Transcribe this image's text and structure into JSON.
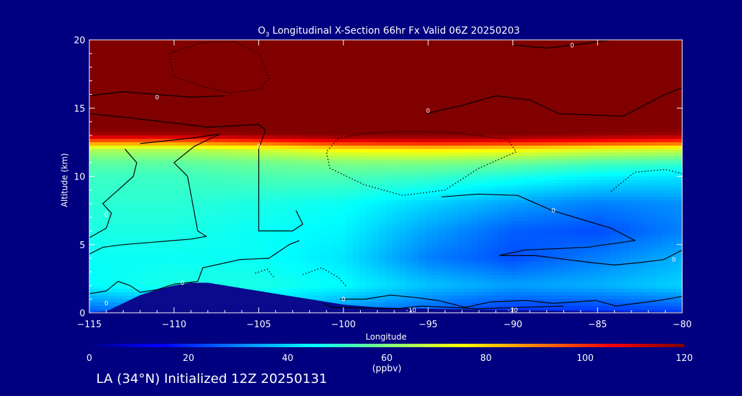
{
  "chart_data": {
    "type": "heatmap",
    "title_species": "O",
    "title_subscript": "3",
    "title_rest": " Longitudinal X-Section 66hr  Fx Valid 06Z 20250203",
    "xlabel": "Longitude",
    "ylabel": "Altitude (km)",
    "xlim": [
      -115,
      -80
    ],
    "ylim": [
      0,
      20
    ],
    "x_ticks": [
      -115,
      -110,
      -105,
      -100,
      -95,
      -90,
      -85,
      -80
    ],
    "x_tick_labels": [
      "−115",
      "−110",
      "−105",
      "−100",
      "−95",
      "−90",
      "−85",
      "−80"
    ],
    "y_ticks": [
      0,
      5,
      10,
      15,
      20
    ],
    "y_tick_labels": [
      "0",
      "5",
      "10",
      "15",
      "20"
    ],
    "colorbar": {
      "range": [
        0,
        120
      ],
      "ticks": [
        0,
        20,
        40,
        60,
        80,
        100,
        120
      ],
      "tick_labels": [
        "0",
        "20",
        "40",
        "60",
        "80",
        "100",
        "120"
      ],
      "units": "(ppbv)",
      "colormap": "jet"
    },
    "field_description": "ozone concentration",
    "ozone_field": {
      "longitudes": [
        -115,
        -110,
        -105,
        -100,
        -95,
        -90,
        -85,
        -80
      ],
      "altitudes_km": [
        0,
        2,
        4,
        6,
        8,
        10,
        11,
        12,
        12.5,
        13,
        13.5,
        14,
        16,
        20
      ],
      "values_ppbv": [
        [
          25,
          30,
          40,
          30,
          25,
          20,
          20,
          22
        ],
        [
          45,
          48,
          48,
          45,
          38,
          34,
          36,
          40
        ],
        [
          46,
          46,
          46,
          42,
          30,
          24,
          30,
          36
        ],
        [
          48,
          48,
          46,
          44,
          34,
          26,
          24,
          30
        ],
        [
          50,
          50,
          48,
          46,
          40,
          34,
          30,
          32
        ],
        [
          52,
          52,
          54,
          54,
          52,
          48,
          44,
          42
        ],
        [
          56,
          56,
          58,
          60,
          60,
          58,
          54,
          52
        ],
        [
          66,
          66,
          70,
          76,
          78,
          76,
          72,
          70
        ],
        [
          90,
          90,
          96,
          104,
          106,
          104,
          100,
          96
        ],
        [
          115,
          115,
          118,
          120,
          120,
          120,
          118,
          116
        ],
        [
          120,
          120,
          120,
          120,
          120,
          120,
          120,
          120
        ],
        [
          120,
          120,
          120,
          120,
          120,
          120,
          120,
          120
        ],
        [
          120,
          120,
          120,
          120,
          120,
          120,
          120,
          120
        ],
        [
          120,
          120,
          120,
          120,
          120,
          120,
          120,
          120
        ]
      ]
    },
    "terrain_km": {
      "longitudes": [
        -115,
        -114,
        -113,
        -112,
        -111,
        -110,
        -109,
        -108,
        -107,
        -106,
        -105,
        -104,
        -103,
        -102,
        -101,
        -100,
        -98,
        -95,
        -90,
        -85,
        -80
      ],
      "altitudes": [
        0.05,
        0.1,
        0.7,
        1.3,
        1.7,
        2.0,
        2.2,
        2.2,
        2.0,
        1.8,
        1.6,
        1.4,
        1.2,
        1.0,
        0.8,
        0.6,
        0.4,
        0.3,
        0.2,
        0.1,
        0.05
      ]
    },
    "contour_labels": [
      {
        "text": "0",
        "lon": -86.5,
        "alt": 19.6
      },
      {
        "text": "0",
        "lon": -111.0,
        "alt": 15.8
      },
      {
        "text": "0",
        "lon": -95.0,
        "alt": 14.8
      },
      {
        "text": "0",
        "lon": -105.0,
        "alt": 12.2
      },
      {
        "text": "0",
        "lon": -114.0,
        "alt": 7.2
      },
      {
        "text": "0",
        "lon": -87.6,
        "alt": 7.5
      },
      {
        "text": "0",
        "lon": -80.5,
        "alt": 3.9
      },
      {
        "text": "0",
        "lon": -109.5,
        "alt": 2.2
      },
      {
        "text": "0",
        "lon": -114.0,
        "alt": 0.7
      },
      {
        "text": "0",
        "lon": -100.0,
        "alt": 1.0
      },
      {
        "text": "-10",
        "lon": -96.0,
        "alt": 0.2
      },
      {
        "text": "-10",
        "lon": -90.0,
        "alt": 0.2
      }
    ],
    "contour_solid_lines": [
      [
        [
          -115,
          15.9
        ],
        [
          -113,
          16.2
        ],
        [
          -111,
          16.0
        ],
        [
          -109,
          15.8
        ],
        [
          -107,
          15.9
        ]
      ],
      [
        [
          -115,
          14.6
        ],
        [
          -112,
          14.2
        ],
        [
          -108,
          13.6
        ],
        [
          -105,
          13.8
        ],
        [
          -104.6,
          13.4
        ],
        [
          -105,
          12.0
        ],
        [
          -105,
          6.0
        ],
        [
          -103,
          6.0
        ],
        [
          -102.4,
          6.5
        ],
        [
          -102.8,
          7.5
        ]
      ],
      [
        [
          -112,
          12.4
        ],
        [
          -109,
          12.8
        ],
        [
          -107.3,
          13.1
        ],
        [
          -108.8,
          12.2
        ],
        [
          -110,
          11.0
        ],
        [
          -109.2,
          10.0
        ],
        [
          -108.6,
          6.0
        ],
        [
          -108.1,
          5.6
        ],
        [
          -109,
          5.4
        ],
        [
          -111,
          5.2
        ],
        [
          -113,
          5.0
        ],
        [
          -114.2,
          4.8
        ],
        [
          -115,
          4.3
        ]
      ],
      [
        [
          -115,
          5.5
        ],
        [
          -114,
          6.2
        ],
        [
          -113.7,
          7.3
        ],
        [
          -114.2,
          8.0
        ],
        [
          -113.3,
          9.0
        ],
        [
          -112.4,
          10.0
        ],
        [
          -112.2,
          11.0
        ],
        [
          -112.9,
          12.0
        ]
      ],
      [
        [
          -115,
          1.4
        ],
        [
          -114,
          1.6
        ],
        [
          -113.3,
          2.3
        ],
        [
          -112.6,
          2.0
        ],
        [
          -112.0,
          1.5
        ],
        [
          -111.0,
          1.7
        ],
        [
          -110.0,
          2.1
        ],
        [
          -108.6,
          2.3
        ],
        [
          -108.3,
          3.3
        ],
        [
          -106.1,
          3.9
        ],
        [
          -104.4,
          4.0
        ],
        [
          -103.2,
          5.0
        ],
        [
          -102.6,
          5.3
        ]
      ],
      [
        [
          -95.1,
          14.6
        ],
        [
          -93,
          15.2
        ],
        [
          -91,
          15.9
        ],
        [
          -89,
          15.6
        ],
        [
          -87.3,
          14.6
        ],
        [
          -83.5,
          14.4
        ],
        [
          -81,
          16.0
        ],
        [
          -80,
          16.5
        ]
      ],
      [
        [
          -89.9,
          19.6
        ],
        [
          -88,
          19.4
        ],
        [
          -86.5,
          19.6
        ],
        [
          -84.3,
          20.0
        ]
      ],
      [
        [
          -94.2,
          8.5
        ],
        [
          -92,
          8.7
        ],
        [
          -89.7,
          8.6
        ],
        [
          -87.7,
          7.5
        ],
        [
          -84.2,
          6.2
        ],
        [
          -82.8,
          5.3
        ],
        [
          -85.6,
          4.8
        ],
        [
          -89.3,
          4.6
        ],
        [
          -90.8,
          4.2
        ],
        [
          -88.7,
          4.2
        ],
        [
          -85.5,
          3.7
        ],
        [
          -84.0,
          3.5
        ],
        [
          -82.4,
          3.7
        ],
        [
          -81.1,
          3.9
        ],
        [
          -80,
          4.6
        ]
      ],
      [
        [
          -100.2,
          1.0
        ],
        [
          -98.7,
          1.0
        ],
        [
          -97.2,
          1.3
        ],
        [
          -95.6,
          1.1
        ],
        [
          -94.4,
          0.9
        ],
        [
          -92.8,
          0.4
        ],
        [
          -91.3,
          0.8
        ],
        [
          -89.2,
          0.9
        ],
        [
          -87.6,
          0.7
        ],
        [
          -85.1,
          0.9
        ],
        [
          -83.9,
          0.5
        ],
        [
          -81.4,
          0.9
        ],
        [
          -80,
          1.2
        ]
      ],
      [
        [
          -101.2,
          0.7
        ],
        [
          -100.7,
          0.4
        ],
        [
          -96.8,
          0.3
        ],
        [
          -95.4,
          0.5
        ],
        [
          -92.1,
          0.3
        ],
        [
          -89.4,
          0.4
        ],
        [
          -87.0,
          0.5
        ]
      ]
    ],
    "contour_dotted_lines": [
      [
        [
          -100.3,
          12.8
        ],
        [
          -98.5,
          13.2
        ],
        [
          -96.0,
          13.3
        ],
        [
          -93.3,
          13.2
        ],
        [
          -90.3,
          12.7
        ],
        [
          -89.8,
          11.8
        ],
        [
          -92.0,
          10.6
        ],
        [
          -94.0,
          9.0
        ],
        [
          -96.5,
          8.6
        ],
        [
          -98.8,
          9.4
        ],
        [
          -100.8,
          10.6
        ],
        [
          -101.0,
          11.8
        ],
        [
          -100.3,
          12.8
        ]
      ],
      [
        [
          -110.3,
          19.0
        ],
        [
          -108.4,
          19.8
        ],
        [
          -106.5,
          19.9
        ],
        [
          -105.0,
          19.0
        ],
        [
          -104.4,
          17.2
        ],
        [
          -104.9,
          16.4
        ],
        [
          -106.7,
          16.1
        ],
        [
          -108.3,
          16.6
        ],
        [
          -110.0,
          17.3
        ],
        [
          -110.3,
          19.0
        ]
      ],
      [
        [
          -84.2,
          8.9
        ],
        [
          -82.8,
          10.3
        ],
        [
          -81.0,
          10.5
        ],
        [
          -80,
          10.2
        ]
      ],
      [
        [
          -102.4,
          2.8
        ],
        [
          -101.3,
          3.3
        ],
        [
          -100.3,
          2.6
        ],
        [
          -99.8,
          1.9
        ]
      ],
      [
        [
          -105.2,
          2.9
        ],
        [
          -104.5,
          3.2
        ],
        [
          -104.1,
          2.6
        ]
      ]
    ]
  },
  "footer": {
    "init_text": "LA (34°N) Initialized 12Z 20250131"
  }
}
